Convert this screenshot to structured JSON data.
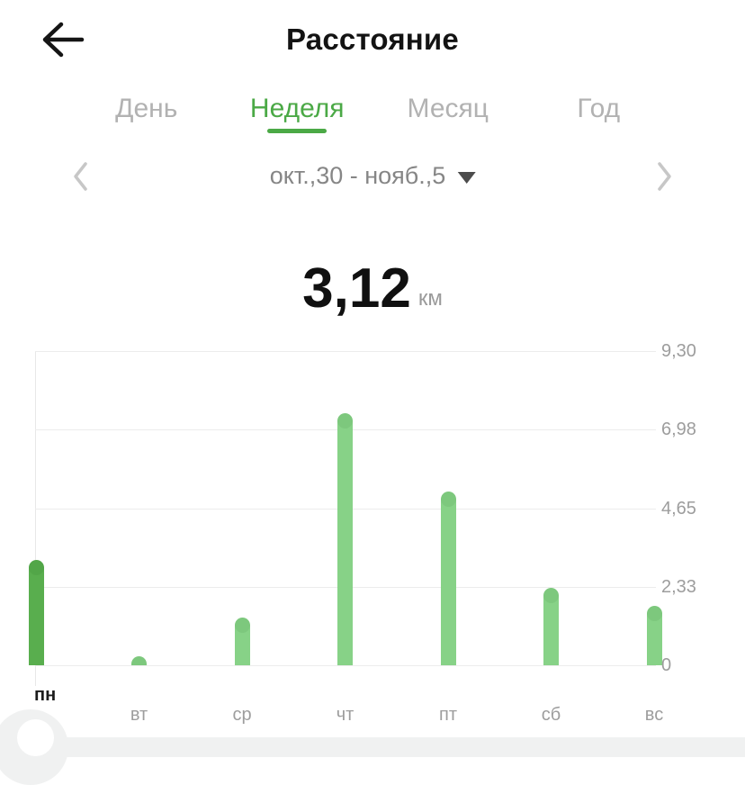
{
  "header": {
    "title": "Расстояние",
    "back_icon": "arrow-left"
  },
  "tabs": {
    "items": [
      {
        "label": "День",
        "active": false
      },
      {
        "label": "Неделя",
        "active": true
      },
      {
        "label": "Месяц",
        "active": false
      },
      {
        "label": "Год",
        "active": false
      }
    ]
  },
  "period": {
    "label": "окт.,30 - нояб.,5",
    "prev_icon": "chevron-left",
    "next_icon": "chevron-right",
    "dropdown_icon": "triangle-down"
  },
  "summary": {
    "value": "3,12",
    "unit": "км"
  },
  "chart_data": {
    "type": "bar",
    "title": "",
    "xlabel": "",
    "ylabel": "",
    "categories": [
      "пн",
      "вт",
      "ср",
      "чт",
      "пт",
      "сб",
      "вс"
    ],
    "values": [
      3.12,
      0.27,
      1.41,
      7.47,
      5.14,
      2.28,
      1.76
    ],
    "selected_index": 0,
    "selected_category": "пн",
    "selected_value": 3.12,
    "unit": "км",
    "ylim": [
      0,
      9.3
    ],
    "yticks": [
      9.3,
      6.98,
      4.65,
      2.33,
      0
    ],
    "ytick_labels": [
      "9,30",
      "6,98",
      "4,65",
      "2,33",
      "0"
    ],
    "grid": true,
    "legend": false,
    "bar_color": "#87d287",
    "selected_bar_color": "#59ae4e"
  },
  "colors": {
    "accent_green": "#4ba946",
    "inactive_tab": "#b2b2b2",
    "axis_label": "#9d9d9d",
    "grid_line": "#ececec",
    "bottom_strip": "#f0f1f1"
  }
}
